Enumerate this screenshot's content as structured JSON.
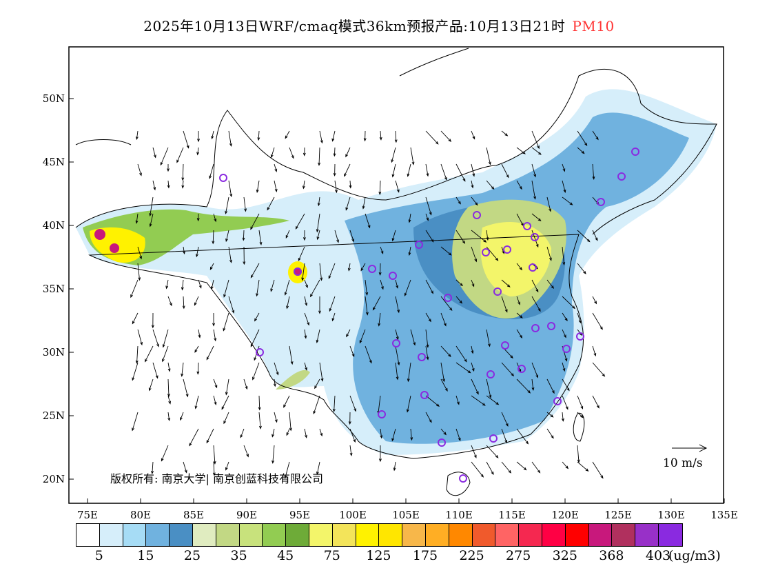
{
  "title": {
    "main": "2025年10月13日WRF/cmaq模式36km预报产品:10月13日21时",
    "variable": "PM10"
  },
  "axes": {
    "lon_ticks": [
      "75E",
      "80E",
      "85E",
      "90E",
      "95E",
      "100E",
      "105E",
      "110E",
      "115E",
      "120E",
      "125E",
      "130E",
      "135E"
    ],
    "lat_ticks": [
      "50N",
      "45N",
      "40N",
      "35N",
      "30N",
      "25N",
      "20N"
    ]
  },
  "copyright": "版权所有: 南京大学| 南京创蓝科技有限公司",
  "wind_scale": "10 m/s",
  "legend": {
    "colors": [
      "#ffffff",
      "#d6eefa",
      "#a6dcf5",
      "#70b2df",
      "#4a8fc4",
      "#e0ecc0",
      "#c2d884",
      "#c8e27c",
      "#92cc52",
      "#6eab38",
      "#f3f56a",
      "#f3e45a",
      "#fff200",
      "#ffe600",
      "#f7b74a",
      "#ffae24",
      "#ff8800",
      "#f05a2c",
      "#ff6464",
      "#f52850",
      "#ff0044",
      "#ff0000",
      "#c8187c",
      "#b0305e",
      "#9830c8",
      "#8a2ae0"
    ],
    "labels": [
      "5",
      "15",
      "25",
      "35",
      "45",
      "75",
      "125",
      "175",
      "225",
      "275",
      "325",
      "368",
      "403"
    ],
    "unit": "(ug/m3)"
  }
}
